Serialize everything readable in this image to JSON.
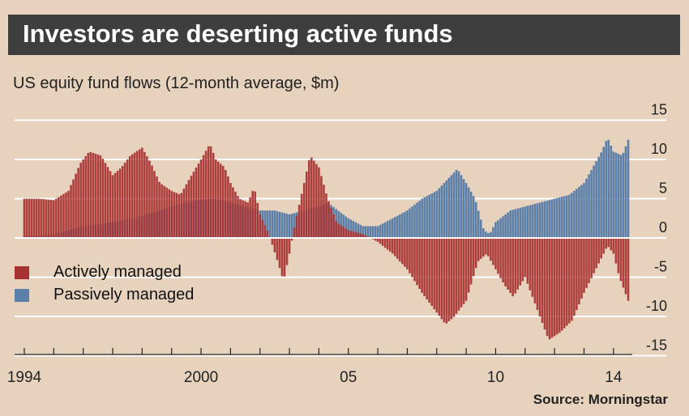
{
  "header": {
    "title": "Investors are deserting active funds"
  },
  "subtitle": "US equity fund flows (12-month average, $m)",
  "source": "Source: Morningstar",
  "legend": {
    "active": "Actively managed",
    "passive": "Passively managed"
  },
  "colors": {
    "active": "#a83232",
    "passive": "#5b7fa8",
    "background": "#e7d2bd",
    "gridline": "#ffffff",
    "header": "#3e3e3e"
  },
  "chart_data": {
    "type": "bar",
    "title": "Investors are deserting active funds",
    "subtitle": "US equity fund flows (12-month average, $m)",
    "x_range": [
      1994,
      2014.5
    ],
    "ylim": [
      -15,
      15
    ],
    "y_ticks": [
      "15",
      "10",
      "5",
      "0",
      "-5",
      "-10",
      "-15"
    ],
    "x_ticks": [
      {
        "label": "1994",
        "x": 1994
      },
      {
        "label": "2000",
        "x": 2000
      },
      {
        "label": "05",
        "x": 2005
      },
      {
        "label": "10",
        "x": 2010
      },
      {
        "label": "14",
        "x": 2014
      }
    ],
    "grid": true,
    "legend_position": "left",
    "series": [
      {
        "name": "Actively managed",
        "points": [
          [
            1994.0,
            5
          ],
          [
            1994.5,
            5
          ],
          [
            1995.0,
            4.8
          ],
          [
            1995.5,
            6
          ],
          [
            1995.9,
            9.5
          ],
          [
            1996.2,
            11
          ],
          [
            1996.6,
            10.5
          ],
          [
            1997.0,
            8
          ],
          [
            1997.3,
            9
          ],
          [
            1997.6,
            10.5
          ],
          [
            1998.0,
            11.5
          ],
          [
            1998.3,
            9.5
          ],
          [
            1998.6,
            7
          ],
          [
            1999.0,
            6
          ],
          [
            1999.3,
            5.5
          ],
          [
            1999.6,
            7.5
          ],
          [
            2000.0,
            10
          ],
          [
            2000.3,
            12
          ],
          [
            2000.5,
            10
          ],
          [
            2000.8,
            9
          ],
          [
            2001.0,
            7
          ],
          [
            2001.3,
            5
          ],
          [
            2001.6,
            4.5
          ],
          [
            2001.8,
            6.5
          ],
          [
            2002.0,
            3
          ],
          [
            2002.3,
            0.5
          ],
          [
            2002.6,
            -3
          ],
          [
            2002.8,
            -5.5
          ],
          [
            2003.0,
            -2
          ],
          [
            2003.2,
            2
          ],
          [
            2003.5,
            7
          ],
          [
            2003.7,
            10.5
          ],
          [
            2004.0,
            9
          ],
          [
            2004.3,
            5
          ],
          [
            2004.6,
            2
          ],
          [
            2005.0,
            1
          ],
          [
            2005.5,
            0.5
          ],
          [
            2006.0,
            -0.5
          ],
          [
            2006.5,
            -2
          ],
          [
            2007.0,
            -4
          ],
          [
            2007.5,
            -7
          ],
          [
            2008.0,
            -9.5
          ],
          [
            2008.3,
            -11
          ],
          [
            2008.6,
            -10
          ],
          [
            2009.0,
            -8
          ],
          [
            2009.4,
            -3
          ],
          [
            2009.7,
            -2
          ],
          [
            2010.0,
            -4
          ],
          [
            2010.3,
            -6
          ],
          [
            2010.6,
            -7.5
          ],
          [
            2011.0,
            -5
          ],
          [
            2011.4,
            -9
          ],
          [
            2011.8,
            -13
          ],
          [
            2012.2,
            -12
          ],
          [
            2012.6,
            -10.5
          ],
          [
            2013.0,
            -7
          ],
          [
            2013.4,
            -4
          ],
          [
            2013.8,
            -1
          ],
          [
            2014.0,
            -2
          ],
          [
            2014.2,
            -5
          ],
          [
            2014.5,
            -8
          ]
        ]
      },
      {
        "name": "Passively managed",
        "points": [
          [
            1994.0,
            0.2
          ],
          [
            1995.0,
            0.5
          ],
          [
            1996.0,
            1.5
          ],
          [
            1997.0,
            2
          ],
          [
            1998.0,
            2.8
          ],
          [
            1999.0,
            4
          ],
          [
            1999.8,
            4.8
          ],
          [
            2000.5,
            5
          ],
          [
            2001.0,
            4.5
          ],
          [
            2001.5,
            4
          ],
          [
            2002.0,
            3.5
          ],
          [
            2002.5,
            3.5
          ],
          [
            2003.0,
            3
          ],
          [
            2003.5,
            3.5
          ],
          [
            2004.0,
            4
          ],
          [
            2004.3,
            4.5
          ],
          [
            2005.0,
            2.5
          ],
          [
            2005.5,
            1.5
          ],
          [
            2006.0,
            1.5
          ],
          [
            2006.5,
            2.5
          ],
          [
            2007.0,
            3.5
          ],
          [
            2007.5,
            5
          ],
          [
            2008.0,
            6
          ],
          [
            2008.5,
            8
          ],
          [
            2008.7,
            8.8
          ],
          [
            2009.0,
            7
          ],
          [
            2009.3,
            5
          ],
          [
            2009.6,
            1
          ],
          [
            2009.8,
            0.5
          ],
          [
            2010.0,
            2
          ],
          [
            2010.5,
            3.5
          ],
          [
            2011.0,
            4
          ],
          [
            2011.5,
            4.5
          ],
          [
            2012.0,
            5
          ],
          [
            2012.5,
            5.5
          ],
          [
            2013.0,
            7
          ],
          [
            2013.3,
            9
          ],
          [
            2013.6,
            11
          ],
          [
            2013.8,
            12.8
          ],
          [
            2014.0,
            11
          ],
          [
            2014.3,
            10.5
          ],
          [
            2014.5,
            12.5
          ]
        ]
      }
    ]
  }
}
